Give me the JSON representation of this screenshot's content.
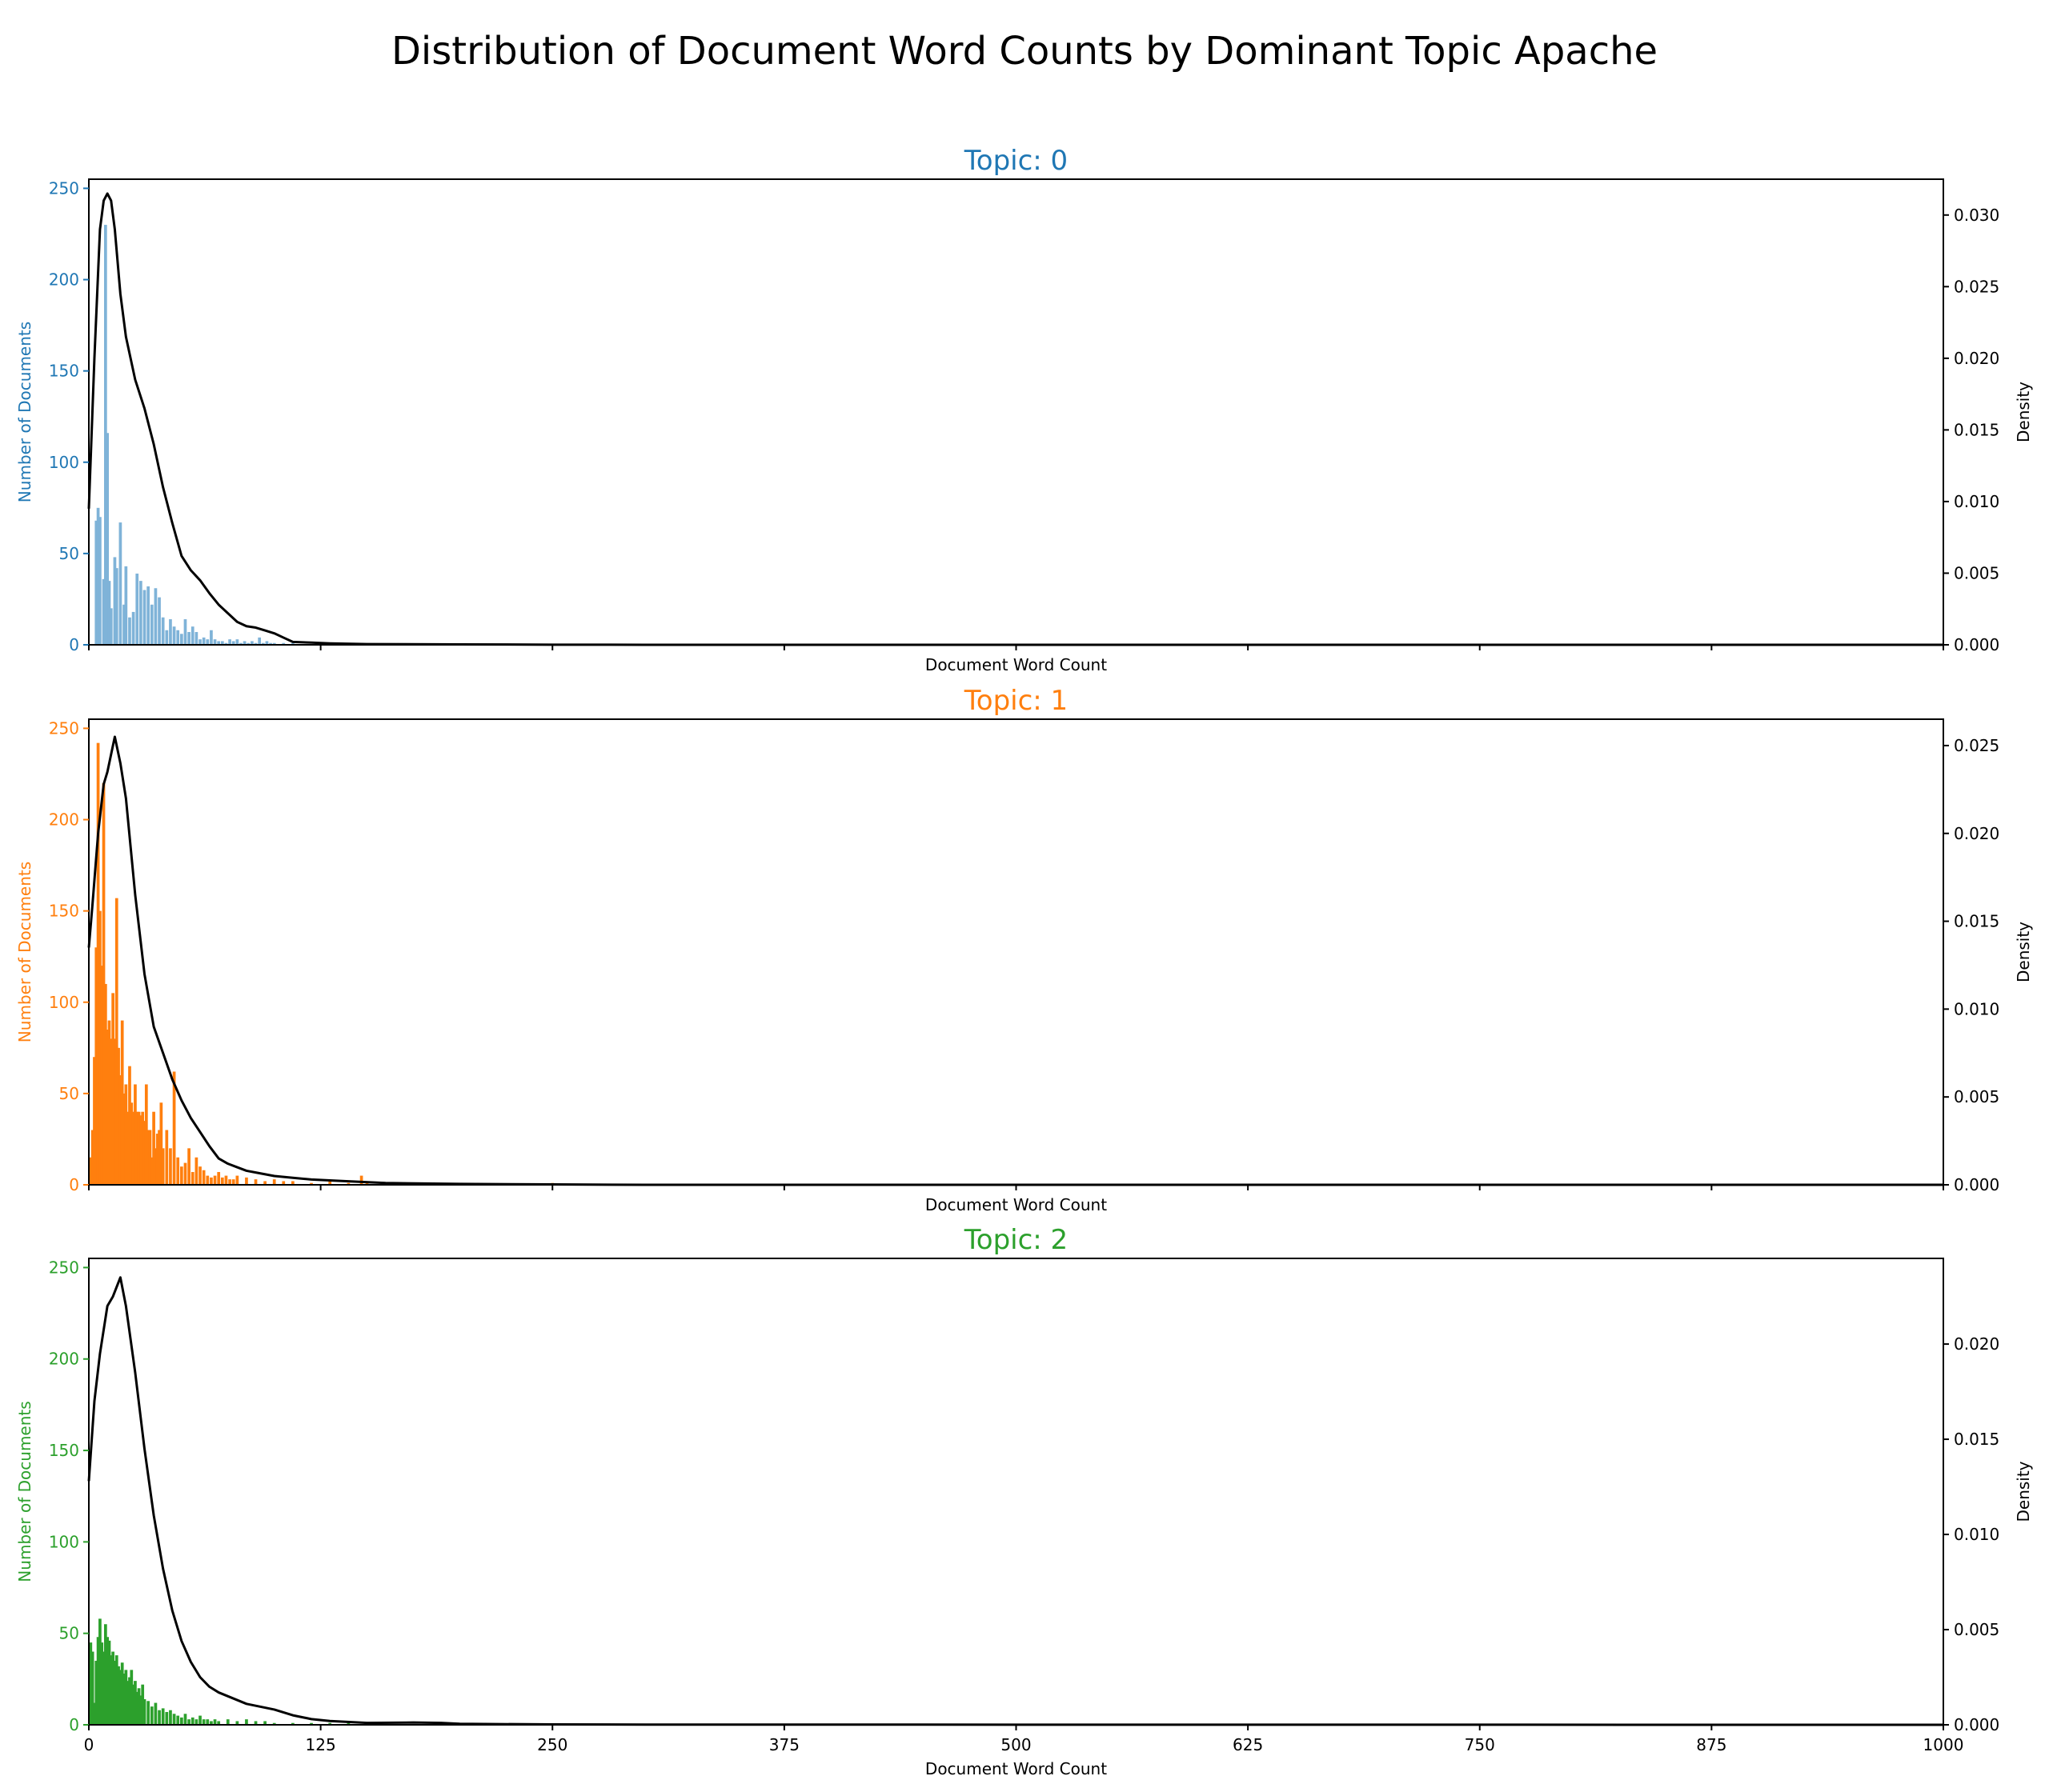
{
  "chart_data": {
    "type": "bar",
    "title": "Distribution of Document Word Counts by Dominant Topic Apache",
    "xlim": [
      0,
      1000
    ],
    "x_ticks": [
      0,
      125,
      250,
      375,
      500,
      625,
      750,
      875,
      1000
    ],
    "xlabel": "Document Word Count",
    "ylabel_left": "Number of Documents",
    "ylabel_right": "Density",
    "ylim_left": [
      0,
      255
    ],
    "y_ticks_left": [
      0,
      50,
      100,
      150,
      200,
      250
    ],
    "panels": [
      {
        "title": "Topic: 0",
        "color": "#1f77b4",
        "bar_color": "#7fb3d8",
        "ylim_right": [
          0,
          0.0325
        ],
        "y_ticks_right": [
          0.0,
          0.005,
          0.01,
          0.015,
          0.02,
          0.025,
          0.03
        ],
        "histogram": {
          "x": [
            4,
            5,
            6,
            8,
            9,
            10,
            11,
            12,
            14,
            15,
            17,
            19,
            20,
            22,
            24,
            26,
            28,
            30,
            32,
            34,
            36,
            38,
            40,
            42,
            44,
            46,
            48,
            50,
            52,
            54,
            56,
            58,
            60,
            62,
            64,
            66,
            68,
            70,
            72,
            74,
            76,
            78,
            80,
            82,
            84,
            86,
            88,
            90,
            92,
            94,
            96,
            98,
            100,
            105,
            110
          ],
          "y": [
            68,
            75,
            70,
            36,
            230,
            116,
            35,
            20,
            48,
            42,
            67,
            22,
            43,
            15,
            18,
            39,
            35,
            30,
            32,
            22,
            31,
            26,
            15,
            8,
            14,
            10,
            8,
            6,
            14,
            7,
            10,
            7,
            3,
            4,
            3,
            8,
            3,
            2,
            2,
            1,
            3,
            2,
            3,
            1,
            2,
            1,
            2,
            1,
            4,
            1,
            2,
            1,
            1,
            1,
            1
          ]
        },
        "density": {
          "x": [
            0,
            3,
            6,
            8,
            10,
            12,
            14,
            17,
            20,
            25,
            30,
            35,
            40,
            45,
            50,
            55,
            60,
            65,
            70,
            75,
            80,
            85,
            90,
            95,
            100,
            105,
            110,
            120,
            130,
            150,
            200,
            250,
            300,
            1000
          ],
          "y": [
            0.0095,
            0.02,
            0.029,
            0.031,
            0.0315,
            0.031,
            0.029,
            0.0245,
            0.0215,
            0.0185,
            0.0165,
            0.014,
            0.011,
            0.0085,
            0.0062,
            0.0052,
            0.0045,
            0.0036,
            0.0028,
            0.0022,
            0.0016,
            0.0013,
            0.0012,
            0.001,
            0.0008,
            0.0005,
            0.0002,
            0.00015,
            0.0001,
            5e-05,
            3e-05,
            1e-05,
            0,
            0
          ]
        }
      },
      {
        "title": "Topic: 1",
        "color": "#ff7f0e",
        "bar_color": "#ff7f0e",
        "ylim_right": [
          0,
          0.0265
        ],
        "y_ticks_right": [
          0.0,
          0.005,
          0.01,
          0.015,
          0.02,
          0.025
        ],
        "histogram": {
          "x": [
            1,
            2,
            3,
            4,
            5,
            6,
            7,
            8,
            9,
            10,
            11,
            12,
            13,
            14,
            15,
            16,
            17,
            18,
            19,
            20,
            21,
            22,
            23,
            24,
            25,
            26,
            27,
            28,
            29,
            30,
            31,
            32,
            33,
            34,
            35,
            36,
            37,
            38,
            39,
            40,
            42,
            44,
            46,
            48,
            50,
            52,
            54,
            56,
            58,
            60,
            62,
            64,
            66,
            68,
            70,
            72,
            74,
            76,
            78,
            80,
            85,
            90,
            95,
            100,
            105,
            110,
            120,
            130,
            140,
            147,
            150,
            160,
            180,
            200,
            250
          ],
          "y": [
            15,
            30,
            70,
            130,
            242,
            150,
            120,
            220,
            110,
            85,
            90,
            80,
            105,
            80,
            157,
            75,
            60,
            90,
            50,
            55,
            40,
            65,
            45,
            40,
            55,
            40,
            40,
            38,
            40,
            35,
            55,
            30,
            30,
            15,
            40,
            20,
            28,
            30,
            45,
            20,
            30,
            20,
            62,
            15,
            10,
            12,
            20,
            7,
            15,
            10,
            8,
            5,
            4,
            5,
            7,
            4,
            5,
            3,
            3,
            5,
            4,
            3,
            2,
            3,
            2,
            2,
            1,
            2,
            1,
            5,
            1,
            1,
            1,
            1,
            1
          ]
        },
        "density": {
          "x": [
            0,
            2,
            5,
            8,
            10,
            12,
            14,
            17,
            20,
            25,
            30,
            35,
            40,
            45,
            50,
            55,
            60,
            65,
            70,
            75,
            80,
            85,
            90,
            100,
            110,
            120,
            140,
            160,
            200,
            250,
            300,
            1000
          ],
          "y": [
            0.0135,
            0.016,
            0.02,
            0.0228,
            0.0235,
            0.0245,
            0.0255,
            0.024,
            0.022,
            0.0165,
            0.012,
            0.009,
            0.0075,
            0.006,
            0.0048,
            0.0038,
            0.003,
            0.0022,
            0.0015,
            0.0012,
            0.001,
            0.0008,
            0.0007,
            0.0005,
            0.0004,
            0.0003,
            0.0002,
            0.0001,
            5e-05,
            2e-05,
            0,
            0
          ]
        }
      },
      {
        "title": "Topic: 2",
        "color": "#2ca02c",
        "bar_color": "#2ca02c",
        "ylim_right": [
          0,
          0.0245
        ],
        "y_ticks_right": [
          0.0,
          0.005,
          0.01,
          0.015,
          0.02
        ],
        "histogram": {
          "x": [
            1,
            2,
            3,
            4,
            5,
            6,
            7,
            8,
            9,
            10,
            11,
            12,
            13,
            14,
            15,
            16,
            17,
            18,
            19,
            20,
            21,
            22,
            23,
            24,
            25,
            26,
            27,
            28,
            29,
            30,
            32,
            34,
            36,
            38,
            40,
            42,
            44,
            46,
            48,
            50,
            52,
            54,
            56,
            58,
            60,
            62,
            64,
            66,
            68,
            70,
            75,
            80,
            85,
            90,
            95,
            100,
            110,
            120,
            130,
            140
          ],
          "y": [
            45,
            40,
            12,
            35,
            48,
            58,
            45,
            40,
            55,
            48,
            46,
            38,
            40,
            35,
            38,
            32,
            30,
            34,
            28,
            30,
            24,
            26,
            30,
            22,
            24,
            18,
            20,
            16,
            22,
            14,
            13,
            10,
            12,
            8,
            9,
            7,
            8,
            6,
            5,
            4,
            6,
            3,
            4,
            3,
            5,
            3,
            3,
            2,
            3,
            2,
            3,
            2,
            3,
            2,
            2,
            1,
            1,
            1,
            1,
            1
          ]
        },
        "density": {
          "x": [
            0,
            3,
            6,
            10,
            13,
            15,
            17,
            20,
            25,
            30,
            35,
            40,
            45,
            50,
            55,
            60,
            65,
            70,
            75,
            80,
            85,
            90,
            100,
            110,
            120,
            130,
            150,
            175,
            190,
            200,
            250,
            300,
            1000
          ],
          "y": [
            0.0128,
            0.017,
            0.0195,
            0.022,
            0.0225,
            0.023,
            0.0235,
            0.022,
            0.0185,
            0.0145,
            0.011,
            0.0082,
            0.006,
            0.0044,
            0.0033,
            0.0025,
            0.002,
            0.0017,
            0.0015,
            0.0013,
            0.0011,
            0.001,
            0.0008,
            0.0005,
            0.0003,
            0.0002,
            0.0001,
            0.00012,
            0.0001,
            5e-05,
            2e-05,
            1e-05,
            0
          ]
        }
      }
    ]
  }
}
